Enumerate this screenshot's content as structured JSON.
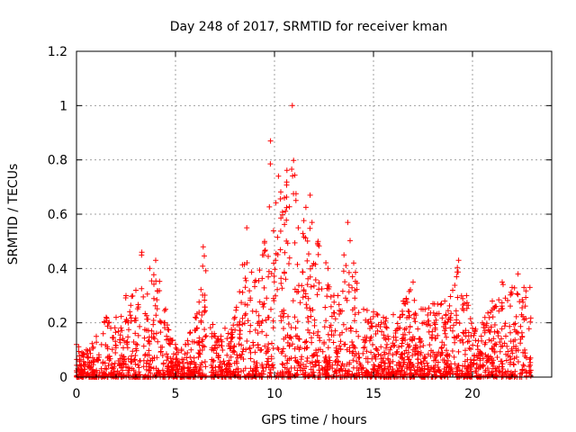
{
  "chart_data": {
    "type": "scatter",
    "title": "Day 248 of 2017, SRMTID for receiver kman",
    "xlabel": "GPS time / hours",
    "ylabel": "SRMTID / TECUs",
    "xlim": [
      0,
      24
    ],
    "ylim": [
      0,
      1.2
    ],
    "xticks": [
      0,
      5,
      10,
      15,
      20
    ],
    "yticks": [
      0,
      0.2,
      0.4,
      0.6,
      0.8,
      1,
      1.2
    ],
    "ytick_labels": [
      "0",
      "0.2",
      "0.4",
      "0.6",
      "0.8",
      "1",
      "1.2"
    ],
    "grid": true,
    "marker": "plus",
    "colors": {
      "points": "#ff0000",
      "grid": "#a0a0a0",
      "axis": "#000000"
    },
    "series": [
      {
        "name": "SRMTID",
        "envelope": [
          [
            0.0,
            0.12
          ],
          [
            0.5,
            0.1
          ],
          [
            1.0,
            0.15
          ],
          [
            1.5,
            0.22
          ],
          [
            2.0,
            0.22
          ],
          [
            2.5,
            0.3
          ],
          [
            3.0,
            0.32
          ],
          [
            3.3,
            0.46
          ],
          [
            3.7,
            0.4
          ],
          [
            4.0,
            0.43
          ],
          [
            4.5,
            0.25
          ],
          [
            5.0,
            0.12
          ],
          [
            5.5,
            0.12
          ],
          [
            6.0,
            0.22
          ],
          [
            6.4,
            0.48
          ],
          [
            7.0,
            0.15
          ],
          [
            7.5,
            0.18
          ],
          [
            8.0,
            0.22
          ],
          [
            8.6,
            0.55
          ],
          [
            9.0,
            0.35
          ],
          [
            9.5,
            0.5
          ],
          [
            9.8,
            0.87
          ],
          [
            10.2,
            0.74
          ],
          [
            10.5,
            0.66
          ],
          [
            10.9,
            1.0
          ],
          [
            11.2,
            0.55
          ],
          [
            11.8,
            0.67
          ],
          [
            12.2,
            0.5
          ],
          [
            12.7,
            0.4
          ],
          [
            13.2,
            0.3
          ],
          [
            13.7,
            0.57
          ],
          [
            14.0,
            0.42
          ],
          [
            14.5,
            0.25
          ],
          [
            15.0,
            0.24
          ],
          [
            15.5,
            0.22
          ],
          [
            16.0,
            0.23
          ],
          [
            16.5,
            0.28
          ],
          [
            17.0,
            0.35
          ],
          [
            17.5,
            0.25
          ],
          [
            18.0,
            0.27
          ],
          [
            18.6,
            0.28
          ],
          [
            19.0,
            0.32
          ],
          [
            19.3,
            0.43
          ],
          [
            19.7,
            0.3
          ],
          [
            20.0,
            0.18
          ],
          [
            20.5,
            0.2
          ],
          [
            21.0,
            0.28
          ],
          [
            21.5,
            0.35
          ],
          [
            22.0,
            0.33
          ],
          [
            22.3,
            0.38
          ],
          [
            22.6,
            0.33
          ],
          [
            22.9,
            0.33
          ]
        ],
        "gaps": [
          [
            6.55,
            6.75
          ],
          [
            22.75,
            22.85
          ]
        ],
        "x_range": [
          0.0,
          22.95
        ],
        "point_count": 2400
      }
    ]
  }
}
